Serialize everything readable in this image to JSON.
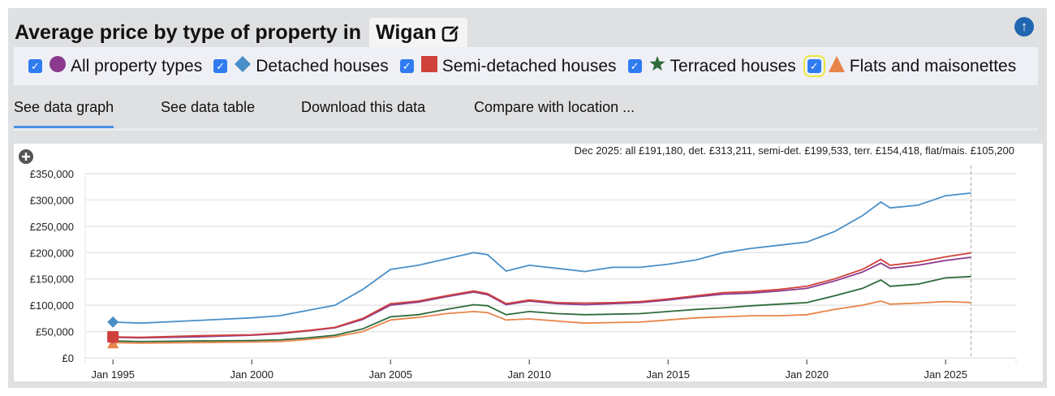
{
  "header": {
    "title": "Average price by type of property in",
    "location": "Wigan",
    "edit_icon": "pencil-square-icon",
    "scroll_top_icon": "arrow-up-circle-icon"
  },
  "legend": [
    {
      "label": "All property types",
      "color": "#8b3a8f",
      "marker": "circle",
      "checked": true
    },
    {
      "label": "Detached houses",
      "color": "#4a8fc7",
      "marker": "diamond",
      "checked": true
    },
    {
      "label": "Semi-detached houses",
      "color": "#d0413c",
      "marker": "square",
      "checked": true
    },
    {
      "label": "Terraced houses",
      "color": "#2f6b3a",
      "marker": "star",
      "checked": true
    },
    {
      "label": "Flats and maisonettes",
      "color": "#e8844a",
      "marker": "triangle",
      "checked": true
    }
  ],
  "tabs": [
    {
      "label": "See data graph",
      "active": true
    },
    {
      "label": "See data table"
    },
    {
      "label": "Download this data"
    },
    {
      "label": "Compare with location ..."
    }
  ],
  "chart_data": {
    "type": "line",
    "annotation": "Dec 2025: all £191,180, det. £313,211, semi-det. £199,533, terr. £154,418, flat/mais. £105,200",
    "y_ticks": [
      "£0",
      "£50,000",
      "£100,000",
      "£150,000",
      "£200,000",
      "£250,000",
      "£300,000",
      "£350,000"
    ],
    "x_ticks": [
      "Jan 1995",
      "Jan 2000",
      "Jan 2005",
      "Jan 2010",
      "Jan 2015",
      "Jan 2020",
      "Jan 2025"
    ],
    "ylim": [
      0,
      350000
    ],
    "grid": true,
    "x": [
      "1995-01",
      "1996-01",
      "1998-01",
      "2000-01",
      "2001-01",
      "2002-01",
      "2003-01",
      "2004-01",
      "2005-01",
      "2006-01",
      "2007-01",
      "2008-01",
      "2008-07",
      "2009-03",
      "2010-01",
      "2011-01",
      "2012-01",
      "2013-01",
      "2014-01",
      "2015-01",
      "2016-01",
      "2017-01",
      "2018-01",
      "2019-01",
      "2020-01",
      "2021-01",
      "2022-01",
      "2022-09",
      "2023-01",
      "2024-01",
      "2025-01",
      "2025-12"
    ],
    "series": [
      {
        "name": "All property types",
        "values": [
          39000,
          38000,
          40000,
          43000,
          46000,
          51000,
          57000,
          73000,
          100000,
          106000,
          116000,
          125000,
          120000,
          101000,
          108000,
          103000,
          101000,
          103000,
          105000,
          110000,
          116000,
          121000,
          123000,
          127000,
          132000,
          146000,
          163000,
          180000,
          170000,
          176000,
          185000,
          191180
        ]
      },
      {
        "name": "Detached houses",
        "values": [
          68000,
          66000,
          71000,
          76000,
          80000,
          90000,
          100000,
          130000,
          168000,
          176000,
          188000,
          200000,
          196000,
          165000,
          176000,
          170000,
          164000,
          172000,
          172000,
          178000,
          186000,
          200000,
          208000,
          214000,
          220000,
          240000,
          270000,
          296000,
          285000,
          290000,
          308000,
          313211
        ]
      },
      {
        "name": "Semi-detached houses",
        "values": [
          40000,
          39000,
          42000,
          44000,
          47000,
          52000,
          58000,
          75000,
          103000,
          108000,
          118000,
          127000,
          122000,
          103000,
          110000,
          105000,
          104000,
          105000,
          107000,
          112000,
          118000,
          124000,
          126000,
          130000,
          136000,
          150000,
          168000,
          187000,
          176000,
          182000,
          192000,
          199533
        ]
      },
      {
        "name": "Terraced houses",
        "values": [
          32000,
          31000,
          32000,
          33000,
          34000,
          38000,
          43000,
          55000,
          78000,
          82000,
          92000,
          101000,
          99000,
          82000,
          88000,
          84000,
          82000,
          83000,
          84000,
          88000,
          92000,
          95000,
          99000,
          102000,
          105000,
          118000,
          132000,
          148000,
          136000,
          140000,
          152000,
          154418
        ]
      },
      {
        "name": "Flats and maisonettes",
        "values": [
          29000,
          28000,
          29000,
          30000,
          31000,
          35000,
          40000,
          50000,
          72000,
          77000,
          84000,
          88000,
          86000,
          72000,
          74000,
          70000,
          66000,
          67000,
          68000,
          72000,
          76000,
          78000,
          80000,
          80000,
          82000,
          92000,
          100000,
          108000,
          102000,
          104000,
          107000,
          105200
        ]
      }
    ]
  }
}
